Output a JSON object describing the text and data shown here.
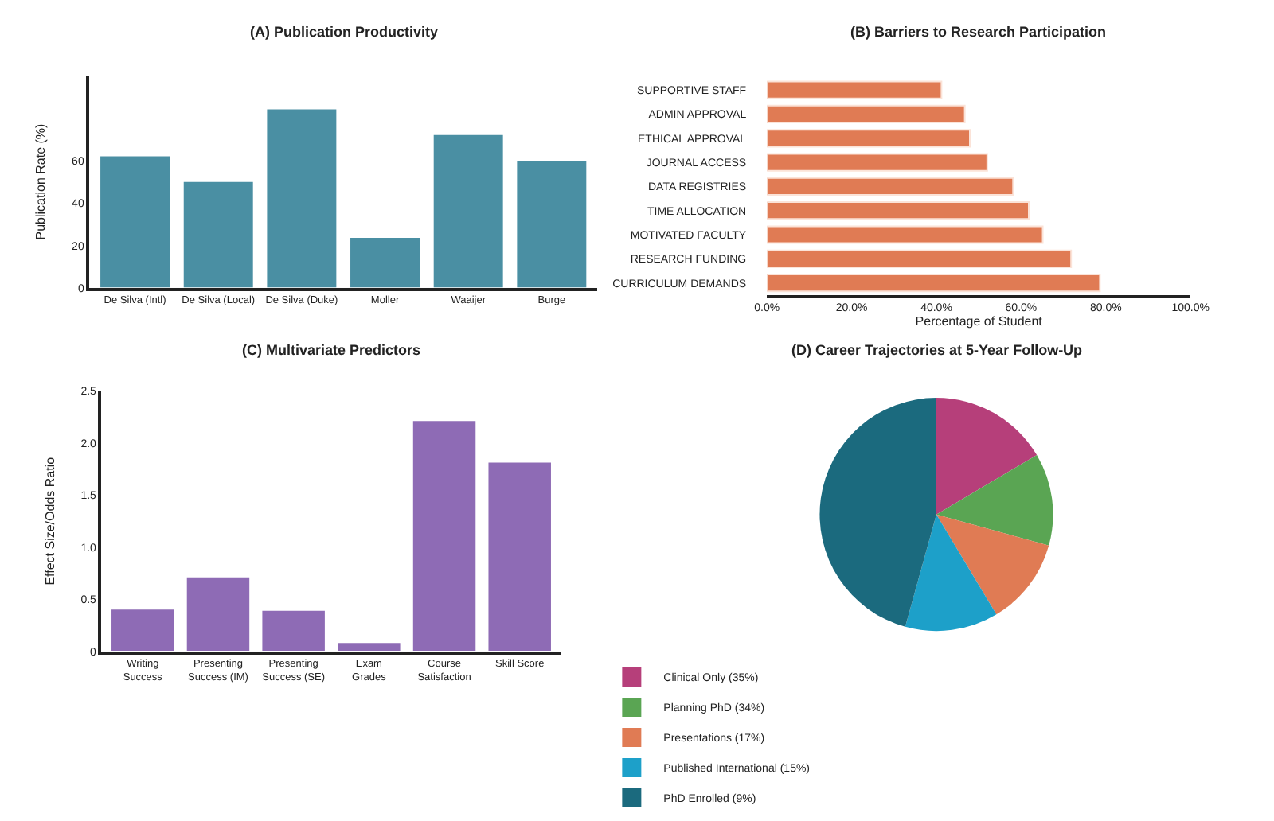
{
  "chart_data": [
    {
      "type": "bar",
      "title": "(A) Publication Productivity",
      "ylabel": "Publication Rate (%)",
      "categories": [
        "De Silva (Intl)",
        "De Silva (Local)",
        "De Silva (Duke)",
        "Moller",
        "Waaijer",
        "Burge"
      ],
      "values": [
        62.4,
        50.3,
        84.5,
        24,
        72.4,
        60.3
      ],
      "color": "#4a8fa3",
      "ylim": [
        0,
        100
      ],
      "yticks": [
        0,
        20,
        40,
        60
      ]
    },
    {
      "type": "bar",
      "orientation": "horizontal",
      "title": "(B) Barriers to Research Participation",
      "xlabel": "Percentage of Student",
      "categories": [
        "SUPPORTIVE STAFF",
        "ADMIN APPROVAL",
        "ETHICAL APPROVAL",
        "JOURNAL ACCESS",
        "DATA REGISTRIES",
        "TIME ALLOCATION",
        "MOTIVATED FACULTY",
        "RESEARCH FUNDING",
        "CURRICULUM DEMANDS"
      ],
      "values": [
        41.2,
        46.7,
        47.9,
        52.0,
        58.1,
        61.8,
        65.1,
        71.8,
        78.6
      ],
      "color": "#e07b54",
      "xlim": [
        0,
        100
      ],
      "xticks": [
        {
          "value": 0,
          "label": "0.0%"
        },
        {
          "value": 20,
          "label": "20.0%"
        },
        {
          "value": 40,
          "label": "40.0%"
        },
        {
          "value": 60,
          "label": "60.0%"
        },
        {
          "value": 80,
          "label": "80.0%"
        },
        {
          "value": 100,
          "label": "100.0%"
        }
      ]
    },
    {
      "type": "bar",
      "title": "(C) Multivariate Predictors",
      "ylabel": "Effect Size/Odds Ratio",
      "categories": [
        "Writing\nSuccess",
        "Presenting\nSuccess (IM)",
        "Presenting\nSuccess (SE)",
        "Exam\nGrades",
        "Course\nSatisfaction",
        "Skill Score"
      ],
      "values": [
        0.41,
        0.72,
        0.4,
        0.09,
        2.22,
        1.82
      ],
      "color": "#8e6bb5",
      "ylim": [
        0,
        2.5
      ],
      "yticks": [
        0,
        0.5,
        {
          "value": 1,
          "label": "1.0"
        },
        1.5,
        {
          "value": 2,
          "label": "2.0"
        },
        2.5
      ]
    },
    {
      "type": "pie",
      "title": "(D) Career Trajectories at 5-Year Follow-Up",
      "categories": [
        "Clinical Only (35%)",
        "Planning PhD (34%)",
        "Presentations (17%)",
        "Published International (15%)",
        "PhD Enrolled (9%)"
      ],
      "values": [
        16.5,
        12.8,
        12.1,
        12.9,
        45.7
      ],
      "colors": [
        "#b63f7a",
        "#5aa553",
        "#e07b54",
        "#1da0c9",
        "#1b6a7e"
      ],
      "legend": "bottom"
    }
  ]
}
